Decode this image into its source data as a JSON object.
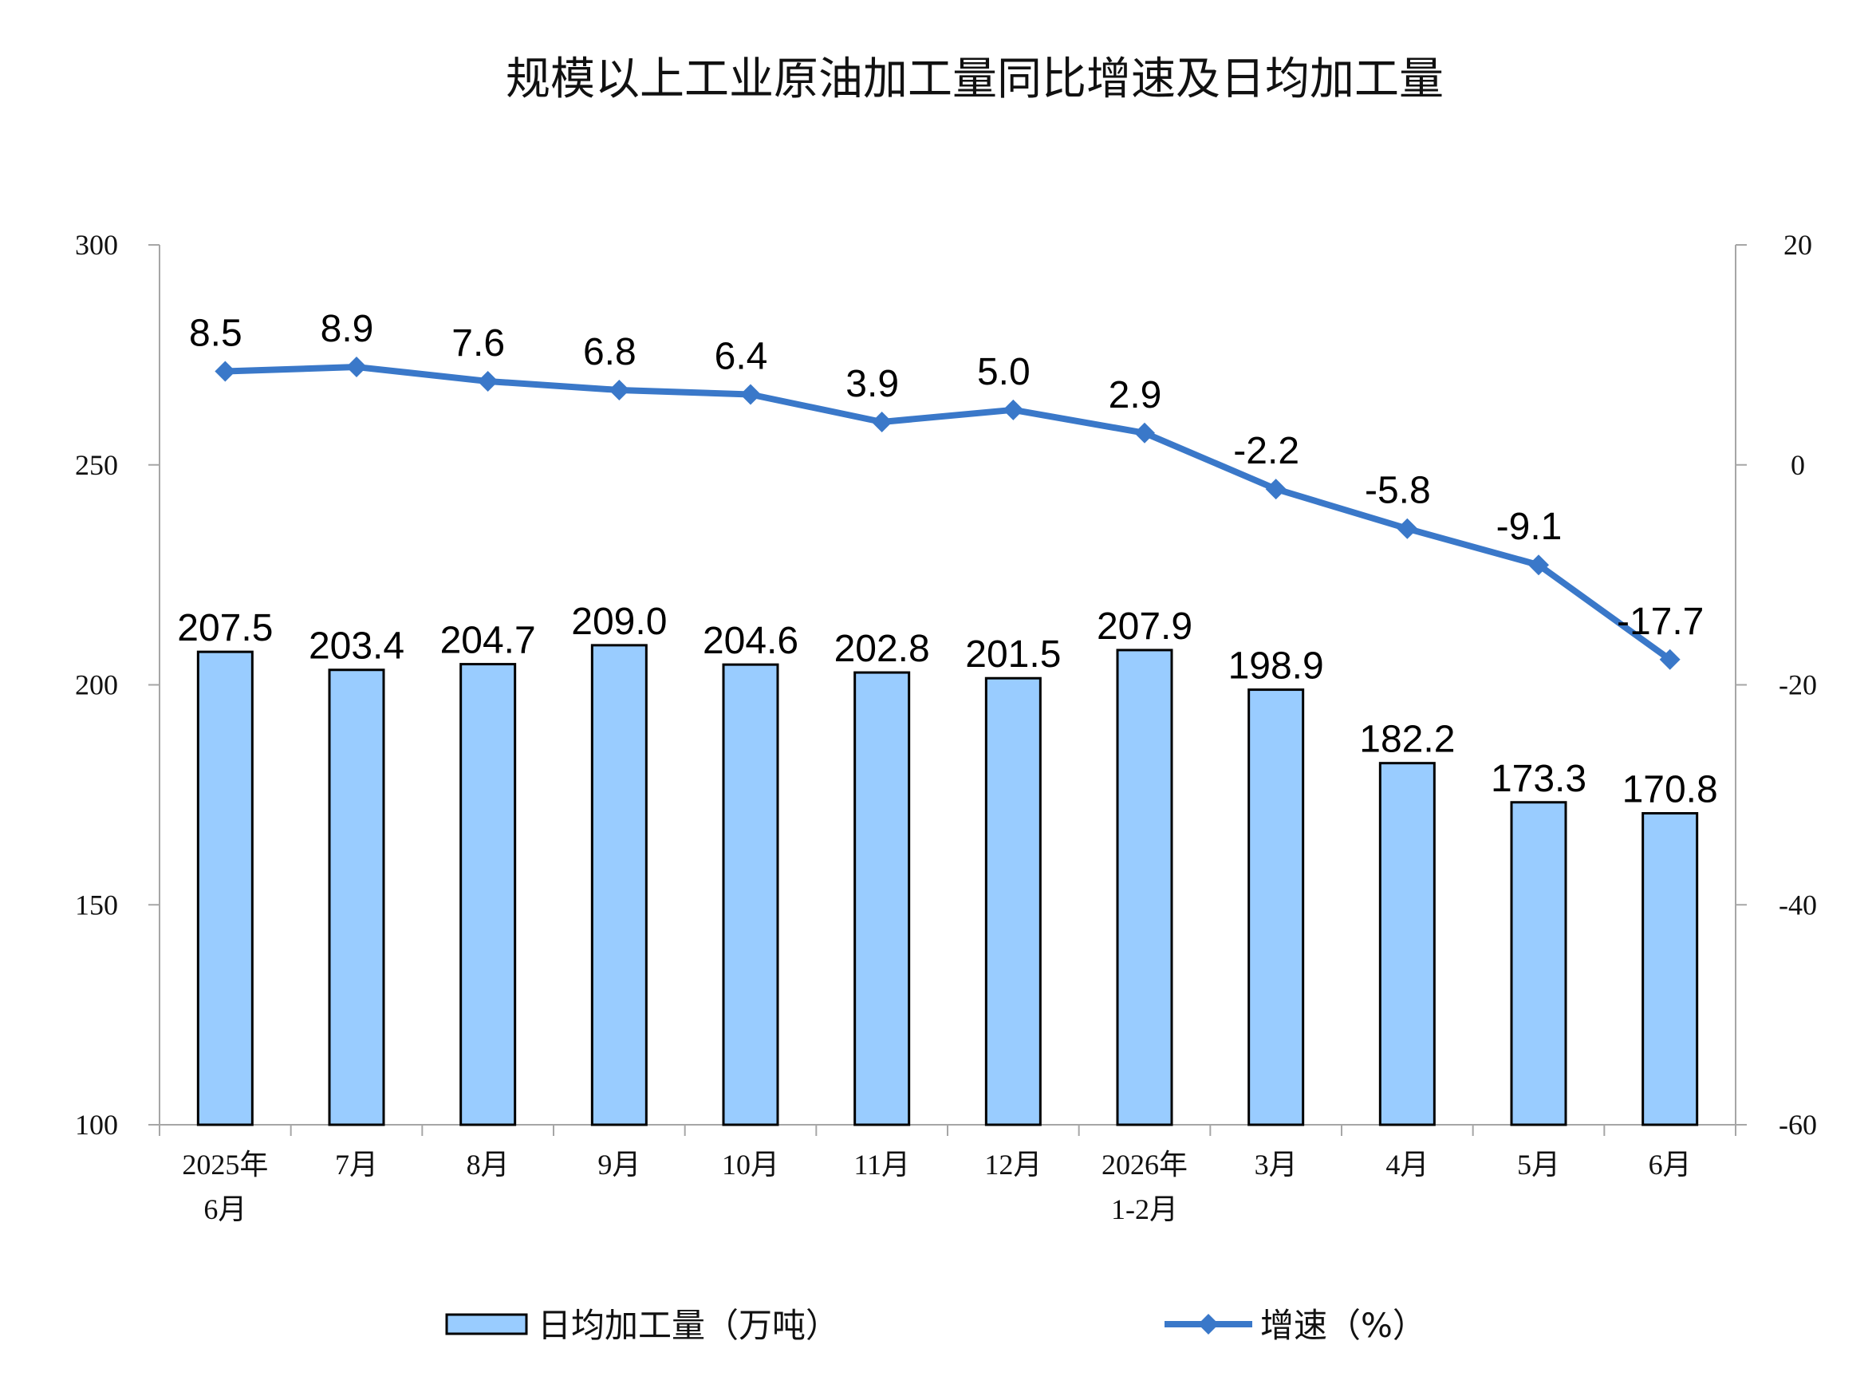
{
  "chart_data": {
    "type": "bar",
    "title": "规模以上工业原油加工量同比增速及日均加工量",
    "categories": [
      [
        "2025年",
        "6月"
      ],
      [
        "7月"
      ],
      [
        "8月"
      ],
      [
        "9月"
      ],
      [
        "10月"
      ],
      [
        "11月"
      ],
      [
        "12月"
      ],
      [
        "2026年",
        "1-2月"
      ],
      [
        "3月"
      ],
      [
        "4月"
      ],
      [
        "5月"
      ],
      [
        "6月"
      ]
    ],
    "series": [
      {
        "name": "日均加工量（万吨）",
        "type": "bar",
        "axis": "left",
        "color": "#99ccff",
        "values": [
          207.5,
          203.4,
          204.7,
          209.0,
          204.6,
          202.8,
          201.5,
          207.9,
          198.9,
          182.2,
          173.3,
          170.8
        ],
        "labels": [
          "207.5",
          "203.4",
          "204.7",
          "209.0",
          "204.6",
          "202.8",
          "201.5",
          "207.9",
          "198.9",
          "182.2",
          "173.3",
          "170.8"
        ]
      },
      {
        "name": "增速（%）",
        "type": "line",
        "axis": "right",
        "color": "#3a78c9",
        "marker": "diamond",
        "values": [
          8.5,
          8.9,
          7.6,
          6.8,
          6.4,
          3.9,
          5.0,
          2.9,
          -2.2,
          -5.8,
          -9.1,
          -17.7
        ],
        "labels": [
          "8.5",
          "8.9",
          "7.6",
          "6.8",
          "6.4",
          "3.9",
          "5.0",
          "2.9",
          "-2.2",
          "-5.8",
          "-9.1",
          "-17.7"
        ]
      }
    ],
    "y_left": {
      "ylim": [
        100,
        300
      ],
      "ticks": [
        "100",
        "150",
        "200",
        "250",
        "300"
      ]
    },
    "y_right": {
      "ylim": [
        -60,
        20
      ],
      "ticks": [
        "-60",
        "-40",
        "-20",
        "0",
        "20"
      ]
    },
    "grid": false,
    "legend_position": "bottom"
  }
}
